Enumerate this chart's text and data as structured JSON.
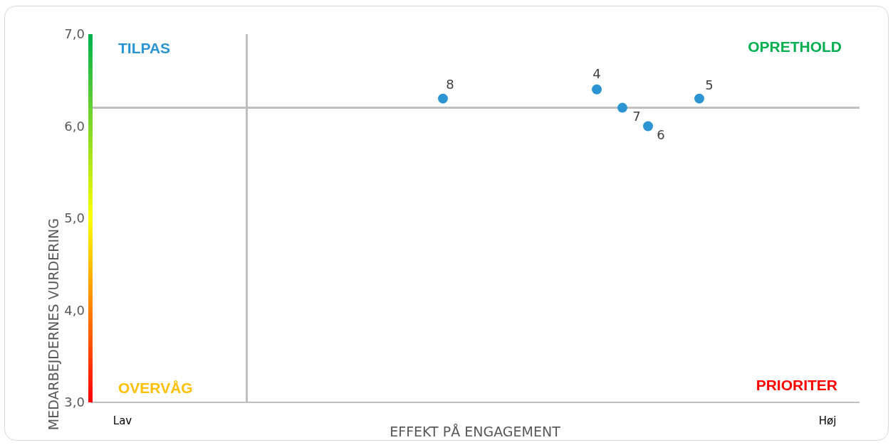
{
  "chart_data": {
    "type": "scatter",
    "ylabel": "MEDARBEJDERNES VURDERING",
    "xlabel": "EFFEKT PÅ ENGAGEMENT",
    "categories": [
      null,
      null,
      "Lav",
      null,
      null,
      null,
      null,
      null,
      null,
      null,
      null,
      null,
      null,
      null,
      null,
      null,
      null,
      null,
      null,
      null,
      null,
      null,
      null,
      null,
      null,
      null,
      null,
      null,
      null,
      null,
      null,
      null,
      null,
      null,
      null,
      null,
      null,
      null,
      null,
      null,
      null,
      null,
      null,
      null,
      null,
      null,
      null,
      null,
      null,
      null,
      null,
      null,
      null,
      null,
      null,
      null,
      null,
      "Høj",
      null,
      null
    ],
    "ylim": [
      3,
      7
    ],
    "yticks": [
      {
        "value": 3,
        "label": "3,0"
      },
      {
        "value": 4,
        "label": "4,0"
      },
      {
        "value": 5,
        "label": "5,0"
      },
      {
        "value": 6,
        "label": "6,0"
      },
      {
        "value": 7,
        "label": "7,0"
      }
    ],
    "marker": "circle",
    "series": [
      {
        "name": "8",
        "color": "#2b95d3",
        "values": [
          null,
          null,
          null,
          null,
          null,
          null,
          null,
          null,
          null,
          null,
          null,
          null,
          null,
          null,
          null,
          null,
          null,
          null,
          null,
          null,
          null,
          null,
          null,
          null,
          null,
          null,
          null,
          6.3,
          null,
          null,
          null,
          null,
          null,
          null,
          null,
          null,
          null,
          null,
          null,
          null,
          null,
          null,
          null,
          null,
          null,
          null,
          null,
          null,
          null,
          null,
          null,
          null,
          null,
          null,
          null,
          null,
          null,
          null,
          null,
          null
        ]
      },
      {
        "name": "4",
        "color": "#2b95d3",
        "values": [
          null,
          null,
          null,
          null,
          null,
          null,
          null,
          null,
          null,
          null,
          null,
          null,
          null,
          null,
          null,
          null,
          null,
          null,
          null,
          null,
          null,
          null,
          null,
          null,
          null,
          null,
          null,
          null,
          null,
          null,
          null,
          null,
          null,
          null,
          null,
          null,
          null,
          null,
          null,
          6.4,
          null,
          null,
          null,
          null,
          null,
          null,
          null,
          null,
          null,
          null,
          null,
          null,
          null,
          null,
          null,
          null,
          null,
          null,
          null,
          null
        ]
      },
      {
        "name": "7",
        "color": "#2b95d3",
        "values": [
          null,
          null,
          null,
          null,
          null,
          null,
          null,
          null,
          null,
          null,
          null,
          null,
          null,
          null,
          null,
          null,
          null,
          null,
          null,
          null,
          null,
          null,
          null,
          null,
          null,
          null,
          null,
          null,
          null,
          null,
          null,
          null,
          null,
          null,
          null,
          null,
          null,
          null,
          null,
          null,
          null,
          6.2,
          null,
          null,
          null,
          null,
          null,
          null,
          null,
          null,
          null,
          null,
          null,
          null,
          null,
          null,
          null,
          null,
          null,
          null
        ]
      },
      {
        "name": "6",
        "color": "#2b95d3",
        "values": [
          null,
          null,
          null,
          null,
          null,
          null,
          null,
          null,
          null,
          null,
          null,
          null,
          null,
          null,
          null,
          null,
          null,
          null,
          null,
          null,
          null,
          null,
          null,
          null,
          null,
          null,
          null,
          null,
          null,
          null,
          null,
          null,
          null,
          null,
          null,
          null,
          null,
          null,
          null,
          null,
          null,
          null,
          null,
          6.0,
          null,
          null,
          null,
          null,
          null,
          null,
          null,
          null,
          null,
          null,
          null,
          null,
          null,
          null,
          null,
          null
        ]
      },
      {
        "name": "5",
        "color": "#2b95d3",
        "values": [
          null,
          null,
          null,
          null,
          null,
          null,
          null,
          null,
          null,
          null,
          null,
          null,
          null,
          null,
          null,
          null,
          null,
          null,
          null,
          null,
          null,
          null,
          null,
          null,
          null,
          null,
          null,
          null,
          null,
          null,
          null,
          null,
          null,
          null,
          null,
          null,
          null,
          null,
          null,
          null,
          null,
          null,
          null,
          null,
          null,
          null,
          null,
          6.3,
          null,
          null,
          null,
          null,
          null,
          null,
          null,
          null,
          null,
          null,
          null,
          null
        ]
      }
    ],
    "ref_lines": [
      {
        "axis": "y",
        "value": 6.2,
        "color": "#bfbfbf"
      }
    ],
    "annotations": [
      "TILPAS",
      "OPRETHOLD",
      "OVERVÅG",
      "PRIORITER"
    ]
  }
}
